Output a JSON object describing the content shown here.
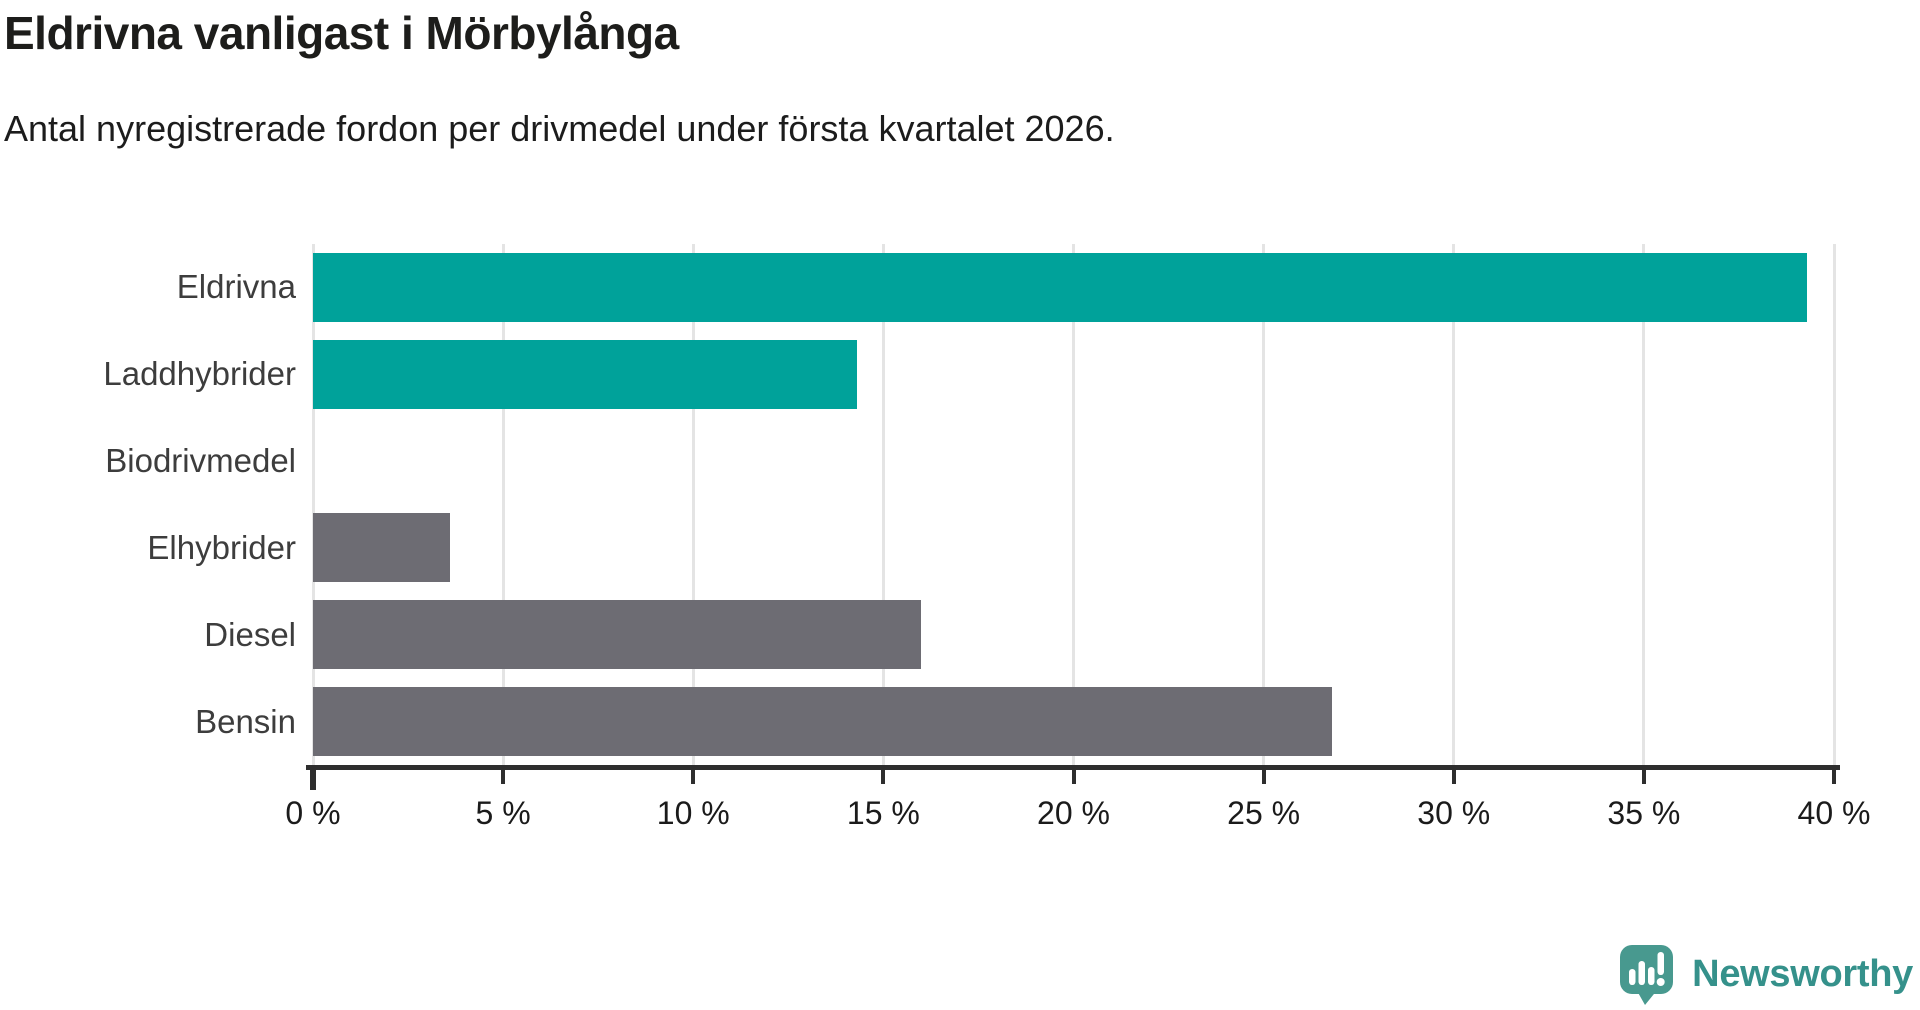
{
  "header": {
    "title": "Eldrivna vanligast i Mörbylånga",
    "subtitle": "Antal nyregistrerade fordon per drivmedel under första kvartalet 2026."
  },
  "chart_data": {
    "type": "bar",
    "orientation": "horizontal",
    "title": "Eldrivna vanligast i Mörbylånga",
    "subtitle": "Antal nyregistrerade fordon per drivmedel under första kvartalet 2026.",
    "categories": [
      "Eldrivna",
      "Laddhybrider",
      "Biodrivmedel",
      "Elhybrider",
      "Diesel",
      "Bensin"
    ],
    "values": [
      39.3,
      14.3,
      0,
      3.6,
      16.0,
      26.8
    ],
    "unit": "%",
    "bar_colors": [
      "#00a29a",
      "#00a29a",
      "#6d6c73",
      "#6d6c73",
      "#6d6c73",
      "#6d6c73"
    ],
    "highlight_color": "#00a29a",
    "default_color": "#6d6c73",
    "xlim": [
      0,
      40
    ],
    "x_ticks": [
      0,
      5,
      10,
      15,
      20,
      25,
      30,
      35,
      40
    ],
    "x_tick_labels": [
      "0 %",
      "5 %",
      "10 %",
      "15 %",
      "20 %",
      "25 %",
      "30 %",
      "35 %",
      "40 %"
    ],
    "xlabel": "",
    "ylabel": "",
    "grid": "vertical",
    "gridline_color": "#e4e4e4",
    "axis_color": "#2e2e2e",
    "legend": "none"
  },
  "footer": {
    "brand": "Newsworthy",
    "brand_color": "#35918b",
    "logo_icon": "newsworthy-speech-bubble-bar-chart-icon",
    "logo_bubble_color": "#48998f"
  }
}
